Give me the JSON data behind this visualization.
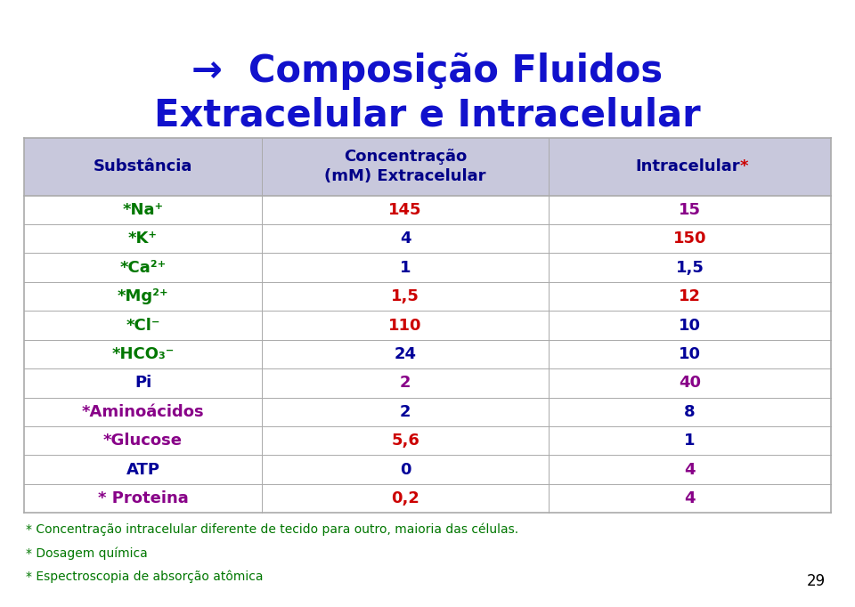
{
  "title_line1": "→  Composição Fluidos",
  "title_line2": "Extracelular e Intracelular",
  "title_color": "#1111CC",
  "col_headers_sub": "Substância",
  "col_headers_conc": "Concentração\n(mM) Extracelular",
  "col_headers_intra_main": "Intracelular",
  "col_headers_intra_star": "*",
  "rows": [
    {
      "substance": "*Na⁺",
      "extra": "145",
      "intra": "15"
    },
    {
      "substance": "*K⁺",
      "extra": "4",
      "intra": "150"
    },
    {
      "substance": "*Ca²⁺",
      "extra": "1",
      "intra": "1,5"
    },
    {
      "substance": "*Mg²⁺",
      "extra": "1,5",
      "intra": "12"
    },
    {
      "substance": "*Cl⁻",
      "extra": "110",
      "intra": "10"
    },
    {
      "substance": "*HCO₃⁻",
      "extra": "24",
      "intra": "10"
    },
    {
      "substance": "Pi",
      "extra": "2",
      "intra": "40"
    },
    {
      "substance": "*Aminoácidos",
      "extra": "2",
      "intra": "8"
    },
    {
      "substance": "*Glucose",
      "extra": "5,6",
      "intra": "1"
    },
    {
      "substance": "ATP",
      "extra": "0",
      "intra": "4"
    },
    {
      "substance": "* Proteina",
      "extra": "0,2",
      "intra": "4"
    }
  ],
  "substance_colors": [
    "#007700",
    "#007700",
    "#007700",
    "#007700",
    "#007700",
    "#007700",
    "#000099",
    "#880088",
    "#880088",
    "#000099",
    "#880088"
  ],
  "extra_colors": [
    "#CC0000",
    "#000099",
    "#000099",
    "#CC0000",
    "#CC0000",
    "#000099",
    "#880088",
    "#000099",
    "#CC0000",
    "#000099",
    "#CC0000"
  ],
  "intra_colors": [
    "#880088",
    "#CC0000",
    "#000099",
    "#CC0000",
    "#000099",
    "#000099",
    "#880088",
    "#000099",
    "#000099",
    "#880088",
    "#880088"
  ],
  "footnotes": [
    "* Concentração intracelular diferente de tecido para outro, maioria das células.",
    "* Dosagem química",
    "* Espectroscopia de absorção atômica"
  ],
  "footnote_color": "#007700",
  "page_number": "29",
  "bg_color": "#FFFFFF",
  "border_color": "#AAAAAA",
  "header_bg": "#C8C8DC",
  "row_bg": "#FFFFFF"
}
